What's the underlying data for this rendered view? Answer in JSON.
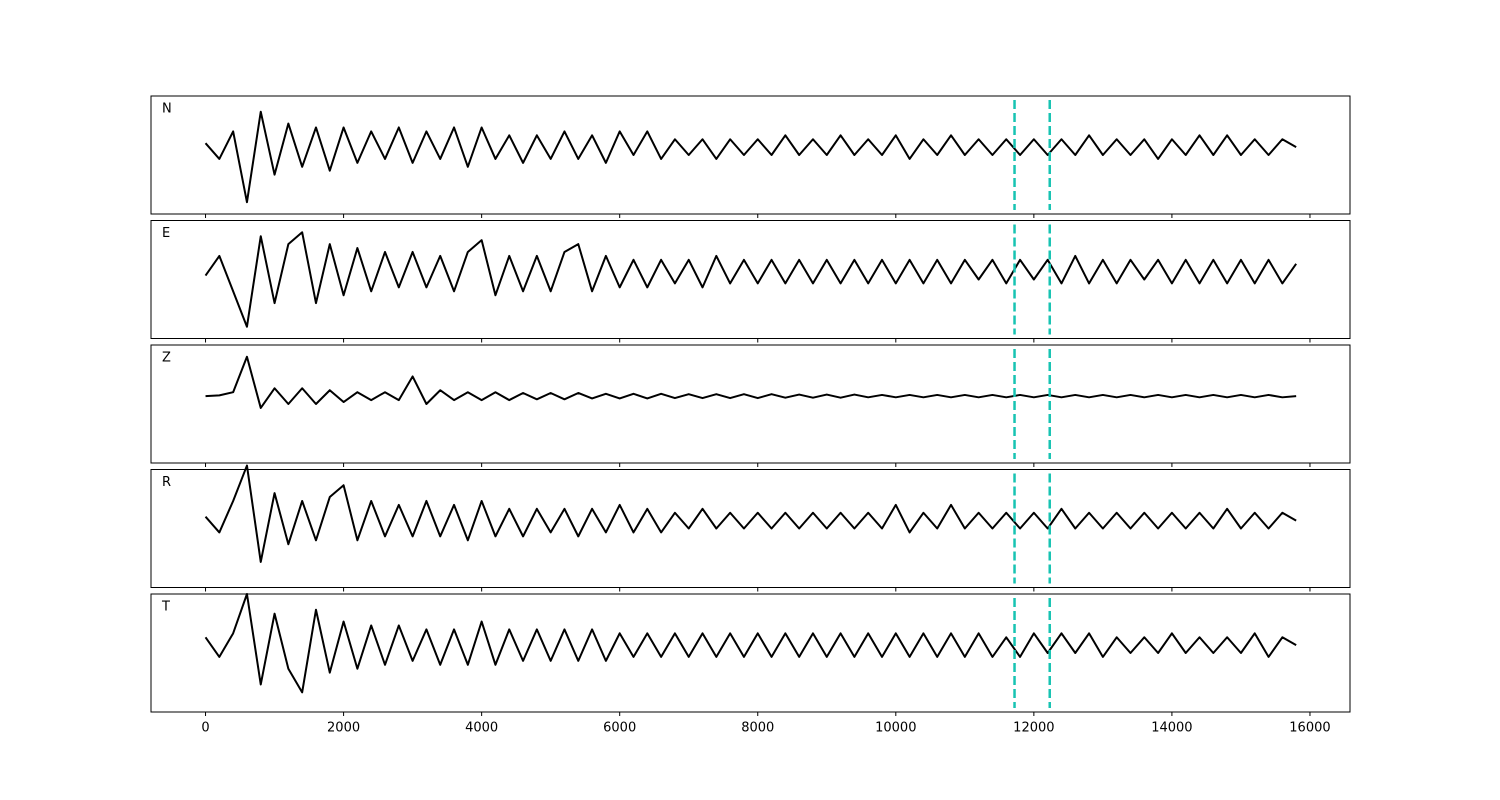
{
  "chart_data": {
    "type": "line",
    "x": [
      0,
      200,
      400,
      600,
      800,
      1000,
      1200,
      1400,
      1600,
      1800,
      2000,
      2200,
      2400,
      2600,
      2800,
      3000,
      3200,
      3400,
      3600,
      3800,
      4000,
      4200,
      4400,
      4600,
      4800,
      5000,
      5200,
      5400,
      5600,
      5800,
      6000,
      6200,
      6400,
      6600,
      6800,
      7000,
      7200,
      7400,
      7600,
      7800,
      8000,
      8200,
      8400,
      8600,
      8800,
      9000,
      9200,
      9400,
      9600,
      9800,
      10000,
      10200,
      10400,
      10600,
      10800,
      11000,
      11200,
      11400,
      11600,
      11800,
      12000,
      12200,
      12400,
      12600,
      12800,
      13000,
      13200,
      13400,
      13600,
      13800,
      14000,
      14200,
      14400,
      14600,
      14800,
      15000,
      15200,
      15400,
      15600,
      15800
    ],
    "series": [
      {
        "name": "N",
        "color": "#000000",
        "values": [
          0.1,
          -0.3,
          0.4,
          -1.4,
          0.9,
          -0.7,
          0.6,
          -0.5,
          0.5,
          -0.6,
          0.5,
          -0.4,
          0.4,
          -0.3,
          0.5,
          -0.4,
          0.4,
          -0.3,
          0.5,
          -0.5,
          0.5,
          -0.3,
          0.3,
          -0.4,
          0.3,
          -0.3,
          0.4,
          -0.3,
          0.3,
          -0.4,
          0.4,
          -0.2,
          0.4,
          -0.3,
          0.2,
          -0.2,
          0.2,
          -0.3,
          0.2,
          -0.2,
          0.2,
          -0.2,
          0.3,
          -0.2,
          0.2,
          -0.2,
          0.3,
          -0.2,
          0.2,
          -0.2,
          0.3,
          -0.3,
          0.2,
          -0.2,
          0.3,
          -0.2,
          0.2,
          -0.2,
          0.2,
          -0.2,
          0.2,
          -0.2,
          0.2,
          -0.2,
          0.3,
          -0.2,
          0.2,
          -0.2,
          0.2,
          -0.3,
          0.2,
          -0.2,
          0.3,
          -0.2,
          0.3,
          -0.2,
          0.2,
          -0.2,
          0.2,
          0.0
        ]
      },
      {
        "name": "E",
        "color": "#000000",
        "values": [
          -0.1,
          0.4,
          -0.5,
          -1.4,
          0.9,
          -0.8,
          0.7,
          1.0,
          -0.8,
          0.7,
          -0.6,
          0.6,
          -0.5,
          0.5,
          -0.4,
          0.5,
          -0.4,
          0.4,
          -0.5,
          0.5,
          0.8,
          -0.6,
          0.4,
          -0.5,
          0.4,
          -0.5,
          0.5,
          0.7,
          -0.5,
          0.4,
          -0.4,
          0.3,
          -0.4,
          0.3,
          -0.3,
          0.3,
          -0.4,
          0.4,
          -0.3,
          0.3,
          -0.3,
          0.3,
          -0.3,
          0.3,
          -0.3,
          0.3,
          -0.3,
          0.3,
          -0.3,
          0.3,
          -0.3,
          0.3,
          -0.3,
          0.3,
          -0.3,
          0.3,
          -0.2,
          0.3,
          -0.3,
          0.3,
          -0.2,
          0.3,
          -0.3,
          0.4,
          -0.3,
          0.3,
          -0.3,
          0.3,
          -0.2,
          0.3,
          -0.3,
          0.3,
          -0.3,
          0.3,
          -0.3,
          0.3,
          -0.3,
          0.3,
          -0.3,
          0.2
        ]
      },
      {
        "name": "Z",
        "color": "#000000",
        "values": [
          0.0,
          0.02,
          0.1,
          1.0,
          -0.3,
          0.2,
          -0.2,
          0.2,
          -0.2,
          0.15,
          -0.15,
          0.1,
          -0.1,
          0.1,
          -0.1,
          0.5,
          -0.2,
          0.15,
          -0.1,
          0.1,
          -0.1,
          0.1,
          -0.1,
          0.08,
          -0.08,
          0.08,
          -0.08,
          0.08,
          -0.06,
          0.06,
          -0.06,
          0.06,
          -0.06,
          0.06,
          -0.05,
          0.05,
          -0.05,
          0.05,
          -0.05,
          0.05,
          -0.05,
          0.05,
          -0.04,
          0.04,
          -0.04,
          0.04,
          -0.04,
          0.04,
          -0.03,
          0.03,
          -0.03,
          0.03,
          -0.03,
          0.03,
          -0.03,
          0.03,
          -0.03,
          0.03,
          -0.03,
          0.03,
          -0.03,
          0.03,
          -0.03,
          0.03,
          -0.03,
          0.03,
          -0.03,
          0.03,
          -0.03,
          0.03,
          -0.03,
          0.03,
          -0.03,
          0.03,
          -0.03,
          0.03,
          -0.03,
          0.03,
          -0.03,
          0.0
        ]
      },
      {
        "name": "R",
        "color": "#000000",
        "values": [
          0.1,
          -0.3,
          0.5,
          1.4,
          -1.05,
          0.7,
          -0.6,
          0.5,
          -0.5,
          0.6,
          0.9,
          -0.5,
          0.5,
          -0.4,
          0.4,
          -0.4,
          0.5,
          -0.4,
          0.4,
          -0.5,
          0.5,
          -0.4,
          0.3,
          -0.4,
          0.3,
          -0.3,
          0.3,
          -0.4,
          0.3,
          -0.3,
          0.4,
          -0.3,
          0.3,
          -0.3,
          0.2,
          -0.2,
          0.3,
          -0.2,
          0.2,
          -0.2,
          0.2,
          -0.2,
          0.2,
          -0.2,
          0.2,
          -0.2,
          0.2,
          -0.2,
          0.2,
          -0.2,
          0.4,
          -0.3,
          0.2,
          -0.2,
          0.4,
          -0.2,
          0.2,
          -0.2,
          0.2,
          -0.2,
          0.2,
          -0.2,
          0.3,
          -0.2,
          0.2,
          -0.2,
          0.2,
          -0.2,
          0.2,
          -0.2,
          0.2,
          -0.2,
          0.2,
          -0.2,
          0.3,
          -0.2,
          0.2,
          -0.2,
          0.2,
          0.0
        ]
      },
      {
        "name": "T",
        "color": "#000000",
        "values": [
          0.2,
          -0.3,
          0.3,
          1.3,
          -1.0,
          0.8,
          -0.6,
          -1.2,
          0.9,
          -0.7,
          0.6,
          -0.6,
          0.5,
          -0.5,
          0.5,
          -0.4,
          0.4,
          -0.5,
          0.4,
          -0.5,
          0.6,
          -0.5,
          0.4,
          -0.4,
          0.4,
          -0.4,
          0.4,
          -0.4,
          0.4,
          -0.4,
          0.3,
          -0.3,
          0.3,
          -0.3,
          0.3,
          -0.3,
          0.3,
          -0.3,
          0.3,
          -0.3,
          0.3,
          -0.3,
          0.3,
          -0.3,
          0.3,
          -0.3,
          0.3,
          -0.3,
          0.3,
          -0.3,
          0.3,
          -0.3,
          0.3,
          -0.3,
          0.3,
          -0.3,
          0.3,
          -0.3,
          0.2,
          -0.3,
          0.3,
          -0.2,
          0.3,
          -0.2,
          0.3,
          -0.3,
          0.2,
          -0.2,
          0.2,
          -0.2,
          0.3,
          -0.2,
          0.2,
          -0.2,
          0.2,
          -0.2,
          0.3,
          -0.3,
          0.2,
          0.0
        ]
      }
    ],
    "xlim": [
      -790,
      16580
    ],
    "ylim": [
      -1.7,
      1.3
    ],
    "xticks": [
      0,
      2000,
      4000,
      6000,
      8000,
      10000,
      12000,
      14000,
      16000
    ],
    "vlines": [
      11720,
      12230
    ],
    "vline_color": "#17c3b2",
    "vline_style": "dashed"
  }
}
